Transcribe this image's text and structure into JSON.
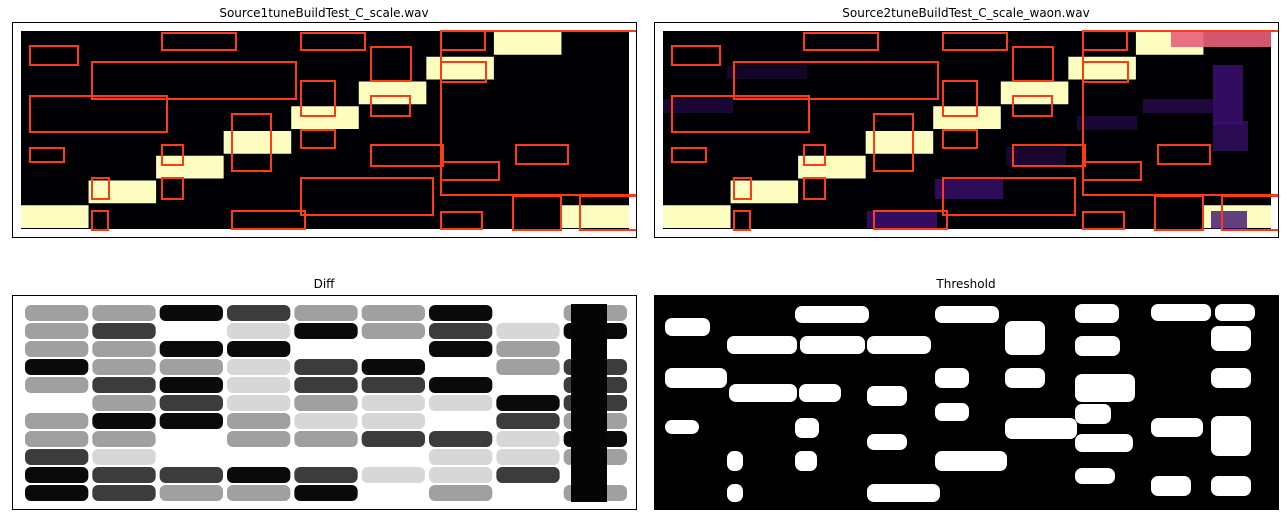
{
  "chart_data": [
    {
      "type": "heatmap",
      "title": "Source1tuneBuildTest_C_scale.wav",
      "colormap": "magma",
      "note_cells": [
        {
          "col": 0,
          "row": 7
        },
        {
          "col": 1,
          "row": 6
        },
        {
          "col": 2,
          "row": 5
        },
        {
          "col": 3,
          "row": 4
        },
        {
          "col": 4,
          "row": 3
        },
        {
          "col": 5,
          "row": 2
        },
        {
          "col": 6,
          "row": 1
        },
        {
          "col": 7,
          "row": 0
        },
        {
          "col": 8,
          "row": 7
        }
      ]
    },
    {
      "type": "heatmap",
      "title": "Source2tuneBuildTest_C_scale_waon.wav",
      "colormap": "magma",
      "note_cells": [
        {
          "col": 0,
          "row": 7
        },
        {
          "col": 1,
          "row": 6
        },
        {
          "col": 2,
          "row": 5
        },
        {
          "col": 3,
          "row": 4
        },
        {
          "col": 4,
          "row": 3
        },
        {
          "col": 5,
          "row": 2
        },
        {
          "col": 6,
          "row": 1
        },
        {
          "col": 7,
          "row": 0
        },
        {
          "col": 8,
          "row": 7
        }
      ]
    },
    {
      "type": "heatmap",
      "title": "Diff",
      "colormap": "gray"
    },
    {
      "type": "heatmap",
      "title": "Threshold",
      "colormap": "binary"
    }
  ],
  "colors": {
    "note": "#fcfdbf",
    "background": "#000004",
    "box": "#ff3b16",
    "purple": "#3b0f70"
  }
}
